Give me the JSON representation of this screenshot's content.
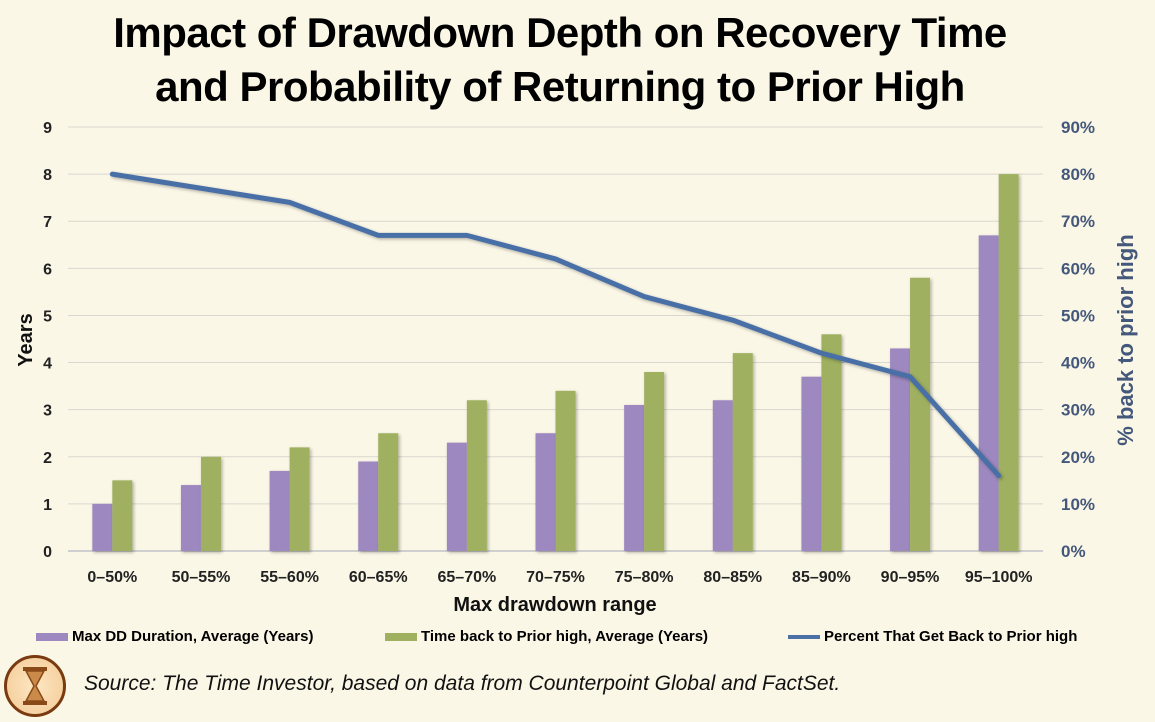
{
  "chart_data": {
    "type": "bar",
    "title": "Impact of Drawdown Depth on Recovery Time and Probability of Returning to Prior High",
    "title_lines": [
      "Impact of Drawdown Depth on Recovery Time",
      "and Probability of Returning to Prior High"
    ],
    "xlabel": "Max drawdown range",
    "ylabel": "Years",
    "y2label": "% back to prior high",
    "ylim": [
      0,
      9
    ],
    "y2lim": [
      0,
      90
    ],
    "yticks": [
      "0",
      "1",
      "2",
      "3",
      "4",
      "5",
      "6",
      "7",
      "8",
      "9"
    ],
    "y2ticks": [
      "0%",
      "10%",
      "20%",
      "30%",
      "40%",
      "50%",
      "60%",
      "70%",
      "80%",
      "90%"
    ],
    "grid": true,
    "legend_position": "bottom",
    "categories": [
      "0–50%",
      "50–55%",
      "55–60%",
      "60–65%",
      "65–70%",
      "70–75%",
      "75–80%",
      "80–85%",
      "85–90%",
      "90–95%",
      "95–100%"
    ],
    "series": [
      {
        "name": "Max DD Duration, Average (Years)",
        "type": "bar",
        "axis": "left",
        "color": "#9e88c0",
        "values": [
          1.0,
          1.4,
          1.7,
          1.9,
          2.3,
          2.5,
          3.1,
          3.2,
          3.7,
          4.3,
          6.7
        ]
      },
      {
        "name": "Time back to Prior high, Average (Years)",
        "type": "bar",
        "axis": "left",
        "color": "#9fb060",
        "values": [
          1.5,
          2.0,
          2.2,
          2.5,
          3.2,
          3.4,
          3.8,
          4.2,
          4.6,
          5.8,
          8.0
        ]
      },
      {
        "name": "Percent That Get Back to Prior high",
        "type": "line",
        "axis": "right",
        "color": "#4a70a6",
        "values": [
          80,
          77,
          74,
          67,
          67,
          62,
          54,
          49,
          42,
          37,
          16
        ]
      }
    ]
  },
  "source": "Source: The Time Investor, based on data from Counterpoint Global and FactSet.",
  "logo_icon": "hourglass-icon"
}
